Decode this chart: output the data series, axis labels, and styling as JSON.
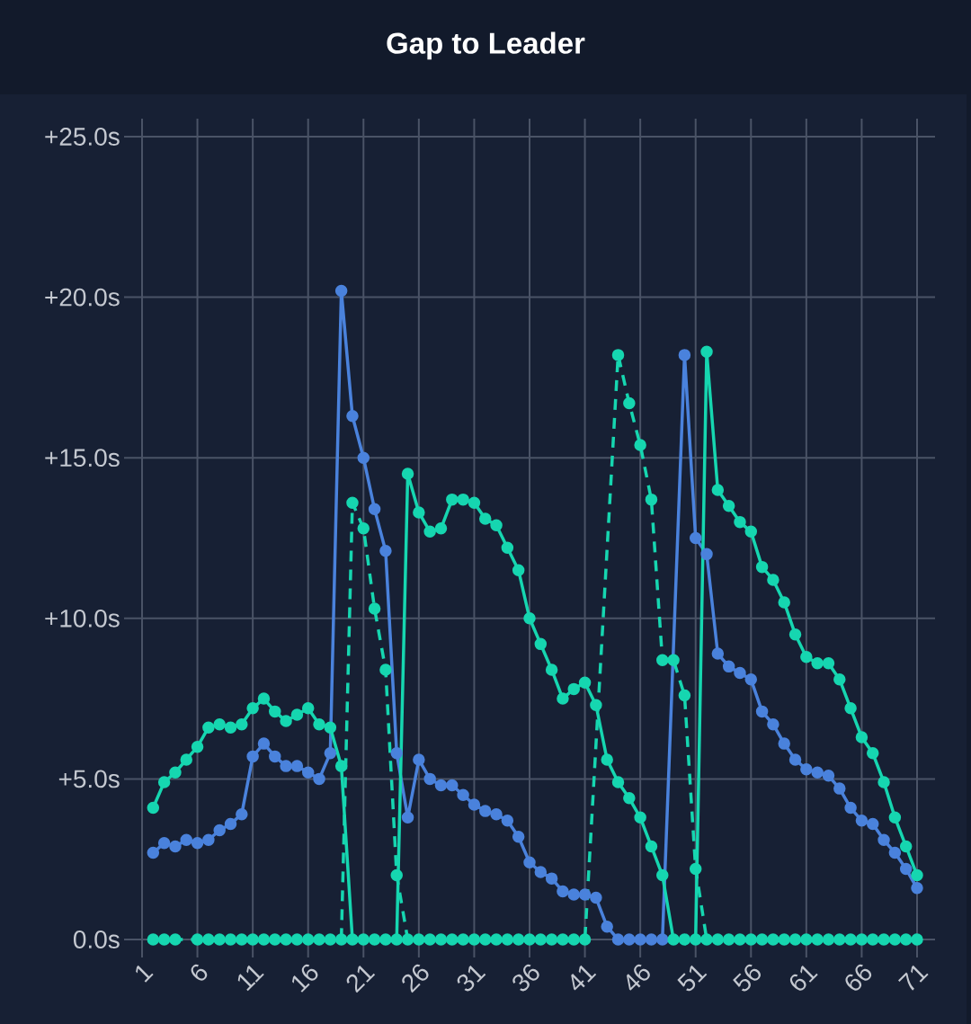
{
  "chart_data": {
    "type": "line",
    "title": "Gap to Leader",
    "x": [
      2,
      3,
      4,
      5,
      6,
      7,
      8,
      9,
      10,
      11,
      12,
      13,
      14,
      15,
      16,
      17,
      18,
      19,
      20,
      21,
      22,
      23,
      24,
      25,
      26,
      27,
      28,
      29,
      30,
      31,
      32,
      33,
      34,
      35,
      36,
      37,
      38,
      39,
      40,
      41,
      42,
      43,
      44,
      45,
      46,
      47,
      48,
      49,
      50,
      51,
      52,
      53,
      54,
      55,
      56,
      57,
      58,
      59,
      60,
      61,
      62,
      63,
      64,
      65,
      66,
      67,
      68,
      69,
      70,
      71
    ],
    "series": [
      {
        "color": "#4a82dc",
        "values": [
          2.7,
          3.0,
          2.9,
          3.1,
          3.0,
          3.1,
          3.4,
          3.6,
          3.9,
          5.7,
          6.1,
          5.7,
          5.4,
          5.4,
          5.2,
          5.0,
          5.8,
          20.2,
          16.3,
          15.0,
          13.4,
          12.1,
          5.8,
          3.8,
          5.6,
          5.0,
          4.8,
          4.8,
          4.5,
          4.2,
          4.0,
          3.9,
          3.7,
          3.2,
          2.4,
          2.1,
          1.9,
          1.5,
          1.4,
          1.4,
          1.3,
          0.4,
          0,
          0,
          0,
          0,
          0,
          null,
          18.2,
          12.5,
          12.0,
          8.9,
          8.5,
          8.3,
          8.1,
          7.1,
          6.7,
          6.1,
          5.6,
          5.3,
          5.2,
          5.1,
          4.7,
          4.1,
          3.7,
          3.6,
          3.1,
          2.7,
          2.2,
          1.6
        ]
      },
      {
        "color": "#16d6b0",
        "values": [
          4.1,
          4.9,
          5.2,
          5.6,
          6.0,
          6.6,
          6.7,
          6.6,
          6.7,
          7.2,
          7.5,
          7.1,
          6.8,
          7.0,
          7.2,
          6.7,
          6.6,
          5.4,
          0,
          0,
          0,
          0,
          0,
          14.5,
          13.3,
          12.7,
          12.8,
          13.7,
          13.7,
          13.6,
          13.1,
          12.9,
          12.2,
          11.5,
          10.0,
          9.2,
          8.4,
          7.5,
          7.8,
          8.0,
          7.3,
          5.6,
          4.9,
          4.4,
          3.8,
          2.9,
          2.0,
          0,
          0,
          0,
          18.3,
          14.0,
          13.5,
          13.0,
          12.7,
          11.6,
          11.2,
          10.5,
          9.5,
          8.8,
          8.6,
          8.6,
          8.1,
          7.2,
          6.3,
          5.8,
          4.9,
          3.8,
          2.9,
          2.0
        ]
      },
      {
        "color": "#16d6b0",
        "line_style": "dashed",
        "values": [
          0,
          0,
          0,
          null,
          0,
          0,
          0,
          0,
          0,
          0,
          0,
          0,
          0,
          0,
          0,
          0,
          0,
          0,
          13.6,
          12.8,
          10.3,
          8.4,
          2.0,
          0,
          0,
          0,
          0,
          0,
          0,
          0,
          0,
          0,
          0,
          0,
          0,
          0,
          0,
          0,
          0,
          0,
          null,
          null,
          18.2,
          16.7,
          15.4,
          13.7,
          8.7,
          8.7,
          7.6,
          2.2,
          0,
          0,
          0,
          0,
          0,
          0,
          0,
          0,
          0,
          0,
          0,
          0,
          0,
          0,
          0,
          0,
          0,
          0,
          0,
          0
        ]
      }
    ],
    "xlim": [
      1,
      71
    ],
    "xticks": [
      1,
      6,
      11,
      16,
      21,
      26,
      31,
      36,
      41,
      46,
      51,
      56,
      61,
      66,
      71
    ],
    "ylim": [
      0,
      25
    ],
    "yticks": [
      {
        "value": 0,
        "label": "0.0s"
      },
      {
        "value": 5,
        "label": "+5.0s"
      },
      {
        "value": 10,
        "label": "+10.0s"
      },
      {
        "value": 15,
        "label": "+15.0s"
      },
      {
        "value": 20,
        "label": "+20.0s"
      },
      {
        "value": 25,
        "label": "+25.0s"
      }
    ],
    "grid": true,
    "marker": "circle",
    "line_style": "solid"
  }
}
